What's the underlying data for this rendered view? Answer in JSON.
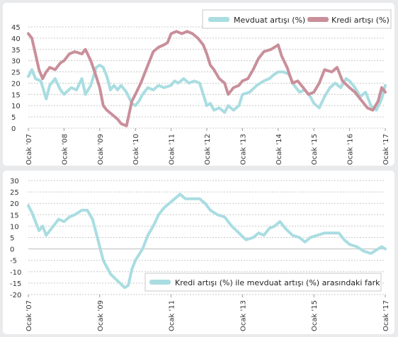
{
  "colors": {
    "mevduat": "#a9dde1",
    "kredi": "#c98f9a",
    "fark": "#a9dde1",
    "grid": "#c8c8c8",
    "zero": "#bdbdbd"
  },
  "chart_data": [
    {
      "type": "line",
      "legend": [
        "Mevduat artışı (%)",
        "Kredi artışı (%)"
      ],
      "legend_position": "top-right",
      "grid": true,
      "ylim": [
        0,
        45
      ],
      "yticks": [
        "45",
        "40",
        "35",
        "30",
        "25",
        "20",
        "15",
        "10",
        "5",
        "0"
      ],
      "xticks": [
        "Ocak '07",
        "Ocak '08",
        "Ocak '09",
        "Ocak '10",
        "Ocak '11",
        "Ocak '12",
        "Ocak '13",
        "Ocak '14",
        "Ocak '15",
        "Ocak '16",
        "Ocak '17"
      ],
      "xlim": [
        2007.0,
        2017.0
      ],
      "series": [
        {
          "name": "Mevduat artışı (%)",
          "x": [
            2007.0,
            2007.1,
            2007.2,
            2007.35,
            2007.5,
            2007.6,
            2007.75,
            2007.9,
            2008.0,
            2008.2,
            2008.35,
            2008.5,
            2008.6,
            2008.75,
            2008.9,
            2009.0,
            2009.1,
            2009.2,
            2009.3,
            2009.4,
            2009.5,
            2009.6,
            2009.75,
            2009.9,
            2010.0,
            2010.1,
            2010.2,
            2010.35,
            2010.5,
            2010.65,
            2010.8,
            2011.0,
            2011.1,
            2011.2,
            2011.35,
            2011.5,
            2011.65,
            2011.8,
            2011.9,
            2012.0,
            2012.1,
            2012.2,
            2012.35,
            2012.5,
            2012.6,
            2012.75,
            2012.9,
            2013.0,
            2013.2,
            2013.4,
            2013.6,
            2013.75,
            2013.9,
            2014.0,
            2014.15,
            2014.3,
            2014.45,
            2014.6,
            2014.75,
            2014.9,
            2015.0,
            2015.15,
            2015.3,
            2015.45,
            2015.6,
            2015.75,
            2015.9,
            2016.0,
            2016.15,
            2016.3,
            2016.45,
            2016.6,
            2016.75,
            2016.9,
            2017.0
          ],
          "values": [
            23,
            26,
            22,
            21,
            13,
            19,
            22,
            17,
            15,
            18,
            17,
            22,
            15,
            19,
            27,
            28,
            27,
            23,
            17,
            19,
            17,
            19,
            16,
            11,
            10,
            12,
            15,
            18,
            17,
            19,
            18,
            19,
            21,
            20,
            22,
            20,
            21,
            20,
            15,
            10,
            11,
            8,
            9,
            7,
            10,
            8,
            10,
            15,
            16,
            19,
            21,
            22,
            24,
            25,
            25,
            24,
            19,
            16,
            17,
            14,
            11,
            9,
            14,
            18,
            20,
            18,
            22,
            21,
            18,
            14,
            16,
            10,
            8,
            13,
            19
          ]
        },
        {
          "name": "Kredi artışı (%)",
          "x": [
            2007.0,
            2007.1,
            2007.2,
            2007.3,
            2007.4,
            2007.5,
            2007.6,
            2007.75,
            2007.9,
            2008.0,
            2008.15,
            2008.3,
            2008.5,
            2008.6,
            2008.75,
            2008.9,
            2009.0,
            2009.1,
            2009.2,
            2009.35,
            2009.5,
            2009.6,
            2009.75,
            2009.9,
            2010.0,
            2010.15,
            2010.3,
            2010.5,
            2010.65,
            2010.8,
            2010.9,
            2011.0,
            2011.15,
            2011.3,
            2011.45,
            2011.6,
            2011.75,
            2011.9,
            2012.0,
            2012.1,
            2012.2,
            2012.35,
            2012.5,
            2012.6,
            2012.75,
            2012.9,
            2013.0,
            2013.15,
            2013.3,
            2013.45,
            2013.6,
            2013.8,
            2014.0,
            2014.1,
            2014.25,
            2014.4,
            2014.55,
            2014.7,
            2014.85,
            2015.0,
            2015.15,
            2015.3,
            2015.5,
            2015.65,
            2015.8,
            2016.0,
            2016.15,
            2016.3,
            2016.5,
            2016.65,
            2016.8,
            2016.9,
            2017.0
          ],
          "values": [
            42,
            40,
            33,
            26,
            22,
            25,
            27,
            26,
            29,
            30,
            33,
            34,
            33,
            35,
            30,
            23,
            18,
            10,
            8,
            6,
            4,
            2,
            1,
            12,
            15,
            20,
            26,
            34,
            36,
            37,
            38,
            42,
            43,
            42,
            43,
            42,
            40,
            37,
            33,
            28,
            26,
            22,
            20,
            15,
            18,
            19,
            21,
            22,
            26,
            31,
            34,
            35,
            37,
            32,
            27,
            20,
            21,
            18,
            15,
            16,
            20,
            26,
            25,
            27,
            21,
            18,
            16,
            13,
            9,
            8,
            12,
            18,
            16
          ]
        }
      ]
    },
    {
      "type": "line",
      "legend": [
        "Kredi artışı (%) ile mevduat artışı (%) arasındaki fark"
      ],
      "legend_position": "bottom-right",
      "grid": true,
      "ylim": [
        -20,
        30
      ],
      "yticks": [
        "30",
        "25",
        "20",
        "15",
        "10",
        "5",
        "0",
        "-5",
        "-10",
        "-15",
        "-20"
      ],
      "xticks": [
        "Ocak '07",
        "Ocak '09",
        "Ocak '11",
        "Ocak '13",
        "Ocak '15",
        "Ocak '17"
      ],
      "xlim": [
        2007.0,
        2017.0
      ],
      "series": [
        {
          "name": "Kredi artışı (%) ile mevduat artışı (%) arasındaki fark",
          "x": [
            2007.0,
            2007.1,
            2007.2,
            2007.3,
            2007.4,
            2007.5,
            2007.7,
            2007.85,
            2008.0,
            2008.15,
            2008.3,
            2008.5,
            2008.65,
            2008.8,
            2008.95,
            2009.1,
            2009.3,
            2009.5,
            2009.7,
            2009.8,
            2009.9,
            2010.0,
            2010.2,
            2010.35,
            2010.5,
            2010.65,
            2010.8,
            2010.95,
            2011.1,
            2011.25,
            2011.4,
            2011.6,
            2011.8,
            2011.95,
            2012.1,
            2012.3,
            2012.5,
            2012.7,
            2012.9,
            2013.1,
            2013.3,
            2013.45,
            2013.6,
            2013.75,
            2013.9,
            2014.05,
            2014.2,
            2014.4,
            2014.6,
            2014.75,
            2014.9,
            2015.1,
            2015.3,
            2015.5,
            2015.7,
            2015.85,
            2016.0,
            2016.2,
            2016.4,
            2016.6,
            2016.8,
            2016.9,
            2017.0
          ],
          "values": [
            19,
            16,
            12,
            8,
            10,
            6,
            10,
            13,
            12,
            14,
            15,
            17,
            17,
            13,
            4,
            -5,
            -11,
            -14,
            -17,
            -16,
            -9,
            -5,
            0,
            6,
            10,
            15,
            18,
            20,
            22,
            24,
            22,
            22,
            22,
            20,
            17,
            15,
            14,
            10,
            7,
            4,
            5,
            7,
            6,
            9,
            10,
            12,
            9,
            6,
            5,
            3,
            5,
            6,
            7,
            7,
            7,
            4,
            2,
            1,
            -1,
            -2,
            0,
            1,
            0
          ]
        }
      ]
    }
  ]
}
